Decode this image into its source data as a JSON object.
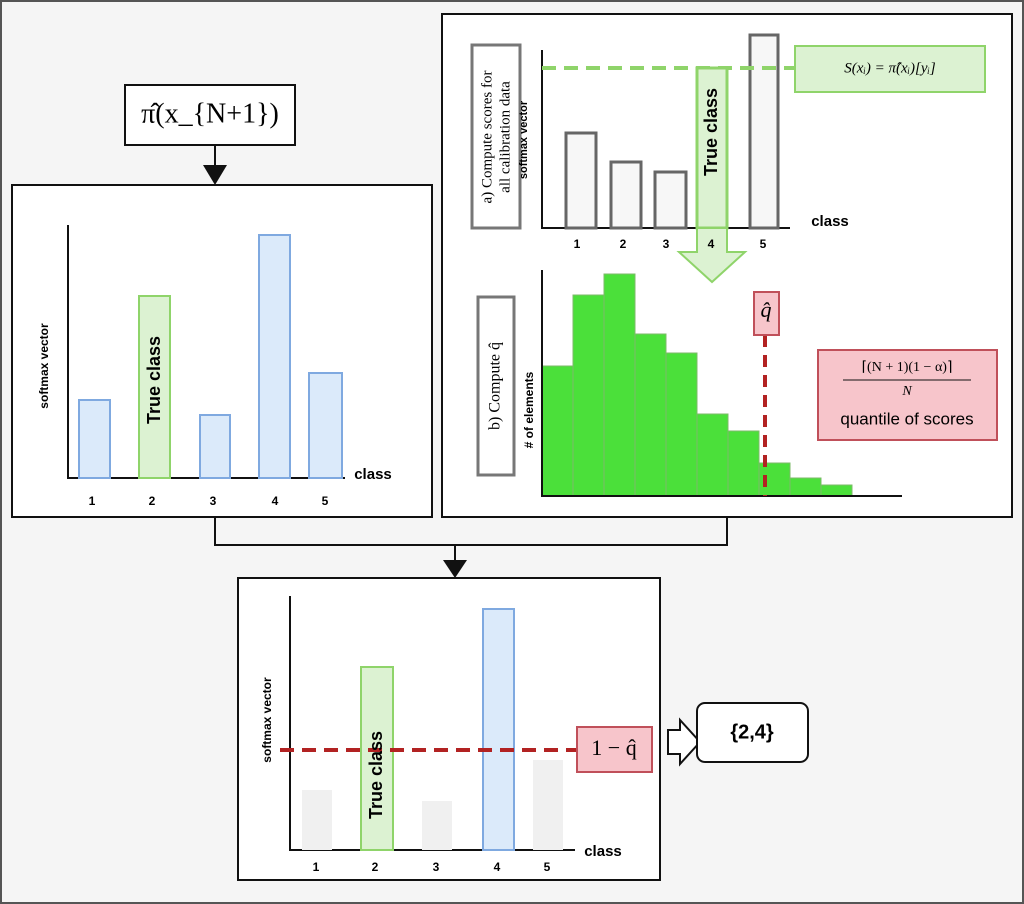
{
  "input": {
    "label": "π̂(x_{N+1})"
  },
  "left_panel": {
    "y_label": "softmax vector",
    "x_label": "class",
    "classes": [
      "1",
      "2",
      "3",
      "4",
      "5"
    ],
    "true_class_label": "True class"
  },
  "calibration_panel": {
    "step_a": [
      "a) Compute scores for",
      "all calibration data"
    ],
    "y_label": "softmax vector",
    "x_label": "class",
    "classes": [
      "1",
      "2",
      "3",
      "4",
      "5"
    ],
    "true_class_label": "True class",
    "score_formula": "S(xᵢ) = π̂(xᵢ)[yᵢ]",
    "step_b": "b) Compute q̂",
    "hist_y_label": "# of elements",
    "q_hat": "q̂",
    "quantile_numerator": "⌈(N + 1)(1 − α)⌉",
    "quantile_denominator": "N",
    "quantile_text": "quantile of scores"
  },
  "prediction_panel": {
    "y_label": "softmax vector",
    "x_label": "class",
    "classes": [
      "1",
      "2",
      "3",
      "4",
      "5"
    ],
    "true_class_label": "True class",
    "threshold": "1 − q̂"
  },
  "output": {
    "set": "{2,4}"
  }
}
